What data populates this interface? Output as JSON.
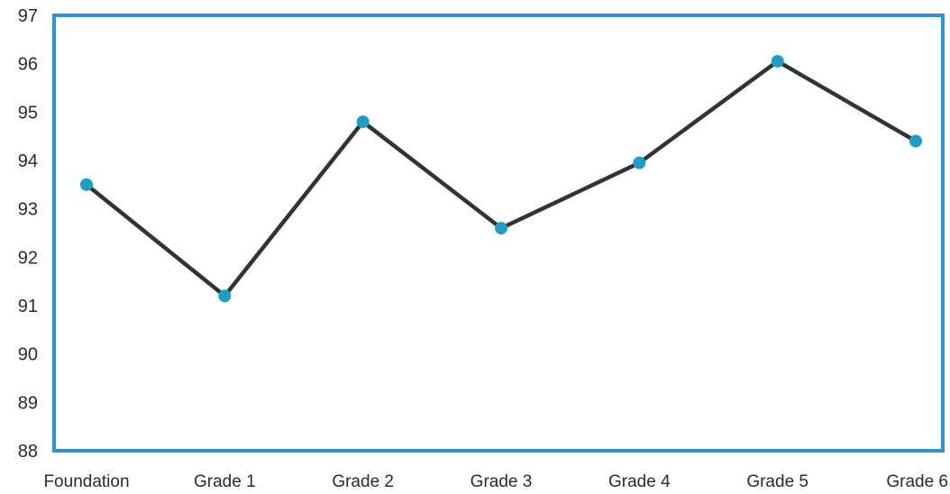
{
  "chart_data": {
    "type": "line",
    "title": "",
    "xlabel": "",
    "ylabel": "",
    "categories": [
      "Foundation",
      "Grade 1",
      "Grade 2",
      "Grade 3",
      "Grade 4",
      "Grade 5",
      "Grade 6"
    ],
    "series": [
      {
        "values": [
          93.5,
          91.2,
          94.8,
          92.6,
          93.95,
          96.05,
          94.4
        ]
      }
    ],
    "ylim": [
      88,
      97
    ],
    "yticks": [
      88,
      89,
      90,
      91,
      92,
      93,
      94,
      95,
      96,
      97
    ],
    "grid": false,
    "legend": "none",
    "colors": {
      "line": "#333333",
      "marker": "#1e9ec4",
      "frame": "#2f93d6"
    }
  }
}
